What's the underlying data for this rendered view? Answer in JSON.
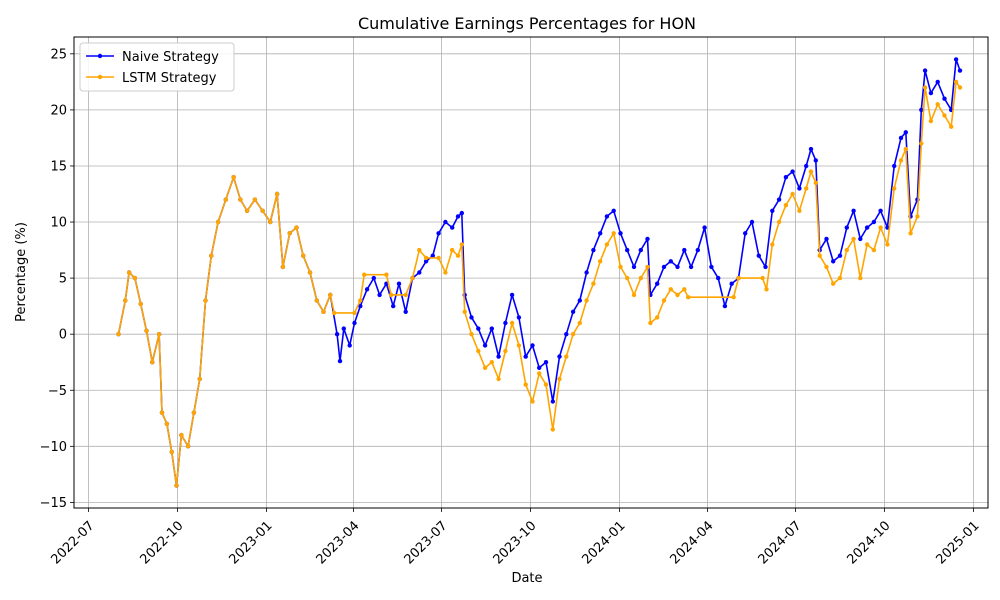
{
  "chart_data": {
    "type": "line",
    "title": "Cumulative Earnings Percentages for HON",
    "xlabel": "Date",
    "ylabel": "Percentage (%)",
    "grid": true,
    "legend_position": "top-left",
    "xlim": [
      "2022-06-16",
      "2025-01-16"
    ],
    "ylim": [
      -15.5,
      26.5
    ],
    "x_ticks": [
      {
        "date": "2022-07-01",
        "label": "2022-07"
      },
      {
        "date": "2022-10-01",
        "label": "2022-10"
      },
      {
        "date": "2023-01-01",
        "label": "2023-01"
      },
      {
        "date": "2023-04-01",
        "label": "2023-04"
      },
      {
        "date": "2023-07-01",
        "label": "2023-07"
      },
      {
        "date": "2023-10-01",
        "label": "2023-10"
      },
      {
        "date": "2024-01-01",
        "label": "2024-01"
      },
      {
        "date": "2024-04-01",
        "label": "2024-04"
      },
      {
        "date": "2024-07-01",
        "label": "2024-07"
      },
      {
        "date": "2024-10-01",
        "label": "2024-10"
      },
      {
        "date": "2025-01-01",
        "label": "2025-01"
      }
    ],
    "y_ticks": [
      {
        "value": -15,
        "label": "−15"
      },
      {
        "value": -10,
        "label": "−10"
      },
      {
        "value": -5,
        "label": "−5"
      },
      {
        "value": 0,
        "label": "0"
      },
      {
        "value": 5,
        "label": "5"
      },
      {
        "value": 10,
        "label": "10"
      },
      {
        "value": 15,
        "label": "15"
      },
      {
        "value": 20,
        "label": "20"
      },
      {
        "value": 25,
        "label": "25"
      }
    ],
    "series": [
      {
        "name": "Naive Strategy",
        "color": "#0000ff",
        "points": [
          [
            "2022-08-01",
            0.0
          ],
          [
            "2022-08-08",
            3.0
          ],
          [
            "2022-08-12",
            5.5
          ],
          [
            "2022-08-18",
            5.0
          ],
          [
            "2022-08-24",
            2.7
          ],
          [
            "2022-08-30",
            0.3
          ],
          [
            "2022-09-05",
            -2.5
          ],
          [
            "2022-09-12",
            0.0
          ],
          [
            "2022-09-15",
            -7.0
          ],
          [
            "2022-09-20",
            -8.0
          ],
          [
            "2022-09-25",
            -10.5
          ],
          [
            "2022-09-30",
            -13.5
          ],
          [
            "2022-10-05",
            -9.0
          ],
          [
            "2022-10-12",
            -10.0
          ],
          [
            "2022-10-18",
            -7.0
          ],
          [
            "2022-10-24",
            -4.0
          ],
          [
            "2022-10-30",
            3.0
          ],
          [
            "2022-11-05",
            7.0
          ],
          [
            "2022-11-12",
            10.0
          ],
          [
            "2022-11-20",
            12.0
          ],
          [
            "2022-11-28",
            14.0
          ],
          [
            "2022-12-05",
            12.0
          ],
          [
            "2022-12-12",
            11.0
          ],
          [
            "2022-12-20",
            12.0
          ],
          [
            "2022-12-28",
            11.0
          ],
          [
            "2023-01-05",
            10.0
          ],
          [
            "2023-01-12",
            12.5
          ],
          [
            "2023-01-18",
            6.0
          ],
          [
            "2023-01-25",
            9.0
          ],
          [
            "2023-02-01",
            9.5
          ],
          [
            "2023-02-08",
            7.0
          ],
          [
            "2023-02-15",
            5.5
          ],
          [
            "2023-02-22",
            3.0
          ],
          [
            "2023-03-01",
            2.0
          ],
          [
            "2023-03-08",
            3.5
          ],
          [
            "2023-03-15",
            0.0
          ],
          [
            "2023-03-18",
            -2.4
          ],
          [
            "2023-03-22",
            0.5
          ],
          [
            "2023-03-28",
            -1.0
          ],
          [
            "2023-04-02",
            1.0
          ],
          [
            "2023-04-08",
            2.5
          ],
          [
            "2023-04-15",
            4.0
          ],
          [
            "2023-04-22",
            5.0
          ],
          [
            "2023-04-28",
            3.5
          ],
          [
            "2023-05-05",
            4.5
          ],
          [
            "2023-05-12",
            2.5
          ],
          [
            "2023-05-18",
            4.5
          ],
          [
            "2023-05-25",
            2.0
          ],
          [
            "2023-06-01",
            5.0
          ],
          [
            "2023-06-08",
            5.5
          ],
          [
            "2023-06-15",
            6.5
          ],
          [
            "2023-06-22",
            7.0
          ],
          [
            "2023-06-28",
            9.0
          ],
          [
            "2023-07-05",
            10.0
          ],
          [
            "2023-07-12",
            9.5
          ],
          [
            "2023-07-18",
            10.5
          ],
          [
            "2023-07-22",
            10.8
          ],
          [
            "2023-07-25",
            3.5
          ],
          [
            "2023-08-01",
            1.5
          ],
          [
            "2023-08-08",
            0.5
          ],
          [
            "2023-08-15",
            -1.0
          ],
          [
            "2023-08-22",
            0.5
          ],
          [
            "2023-08-29",
            -2.0
          ],
          [
            "2023-09-05",
            1.0
          ],
          [
            "2023-09-12",
            3.5
          ],
          [
            "2023-09-19",
            1.5
          ],
          [
            "2023-09-26",
            -2.0
          ],
          [
            "2023-10-03",
            -1.0
          ],
          [
            "2023-10-10",
            -3.0
          ],
          [
            "2023-10-17",
            -2.5
          ],
          [
            "2023-10-24",
            -6.0
          ],
          [
            "2023-10-31",
            -2.0
          ],
          [
            "2023-11-07",
            0.0
          ],
          [
            "2023-11-14",
            2.0
          ],
          [
            "2023-11-21",
            3.0
          ],
          [
            "2023-11-28",
            5.5
          ],
          [
            "2023-12-05",
            7.5
          ],
          [
            "2023-12-12",
            9.0
          ],
          [
            "2023-12-19",
            10.5
          ],
          [
            "2023-12-26",
            11.0
          ],
          [
            "2024-01-02",
            9.0
          ],
          [
            "2024-01-09",
            7.5
          ],
          [
            "2024-01-16",
            6.0
          ],
          [
            "2024-01-23",
            7.5
          ],
          [
            "2024-01-30",
            8.5
          ],
          [
            "2024-02-02",
            3.5
          ],
          [
            "2024-02-09",
            4.5
          ],
          [
            "2024-02-16",
            6.0
          ],
          [
            "2024-02-23",
            6.5
          ],
          [
            "2024-03-01",
            6.0
          ],
          [
            "2024-03-08",
            7.5
          ],
          [
            "2024-03-15",
            6.0
          ],
          [
            "2024-03-22",
            7.5
          ],
          [
            "2024-03-29",
            9.5
          ],
          [
            "2024-04-05",
            6.0
          ],
          [
            "2024-04-12",
            5.0
          ],
          [
            "2024-04-19",
            2.5
          ],
          [
            "2024-04-26",
            4.5
          ],
          [
            "2024-05-03",
            5.0
          ],
          [
            "2024-05-10",
            9.0
          ],
          [
            "2024-05-17",
            10.0
          ],
          [
            "2024-05-24",
            7.0
          ],
          [
            "2024-05-31",
            6.0
          ],
          [
            "2024-06-07",
            11.0
          ],
          [
            "2024-06-14",
            12.0
          ],
          [
            "2024-06-21",
            14.0
          ],
          [
            "2024-06-28",
            14.5
          ],
          [
            "2024-07-05",
            13.0
          ],
          [
            "2024-07-12",
            15.0
          ],
          [
            "2024-07-17",
            16.5
          ],
          [
            "2024-07-22",
            15.5
          ],
          [
            "2024-07-26",
            7.5
          ],
          [
            "2024-08-02",
            8.5
          ],
          [
            "2024-08-09",
            6.5
          ],
          [
            "2024-08-16",
            7.0
          ],
          [
            "2024-08-23",
            9.5
          ],
          [
            "2024-08-30",
            11.0
          ],
          [
            "2024-09-06",
            8.5
          ],
          [
            "2024-09-13",
            9.5
          ],
          [
            "2024-09-20",
            10.0
          ],
          [
            "2024-09-27",
            11.0
          ],
          [
            "2024-10-04",
            9.5
          ],
          [
            "2024-10-11",
            15.0
          ],
          [
            "2024-10-18",
            17.5
          ],
          [
            "2024-10-23",
            18.0
          ],
          [
            "2024-10-28",
            10.5
          ],
          [
            "2024-11-04",
            12.0
          ],
          [
            "2024-11-08",
            20.0
          ],
          [
            "2024-11-12",
            23.5
          ],
          [
            "2024-11-18",
            21.5
          ],
          [
            "2024-11-25",
            22.5
          ],
          [
            "2024-12-02",
            21.0
          ],
          [
            "2024-12-09",
            20.0
          ],
          [
            "2024-12-14",
            24.5
          ],
          [
            "2024-12-18",
            23.5
          ]
        ]
      },
      {
        "name": "LSTM Strategy",
        "color": "#ffa500",
        "points": [
          [
            "2022-08-01",
            0.0
          ],
          [
            "2022-08-08",
            3.0
          ],
          [
            "2022-08-12",
            5.5
          ],
          [
            "2022-08-18",
            5.0
          ],
          [
            "2022-08-24",
            2.7
          ],
          [
            "2022-08-30",
            0.3
          ],
          [
            "2022-09-05",
            -2.5
          ],
          [
            "2022-09-12",
            0.0
          ],
          [
            "2022-09-15",
            -7.0
          ],
          [
            "2022-09-20",
            -8.0
          ],
          [
            "2022-09-25",
            -10.5
          ],
          [
            "2022-09-30",
            -13.5
          ],
          [
            "2022-10-05",
            -9.0
          ],
          [
            "2022-10-12",
            -10.0
          ],
          [
            "2022-10-18",
            -7.0
          ],
          [
            "2022-10-24",
            -4.0
          ],
          [
            "2022-10-30",
            3.0
          ],
          [
            "2022-11-05",
            7.0
          ],
          [
            "2022-11-12",
            10.0
          ],
          [
            "2022-11-20",
            12.0
          ],
          [
            "2022-11-28",
            14.0
          ],
          [
            "2022-12-05",
            12.0
          ],
          [
            "2022-12-12",
            11.0
          ],
          [
            "2022-12-20",
            12.0
          ],
          [
            "2022-12-28",
            11.0
          ],
          [
            "2023-01-05",
            10.0
          ],
          [
            "2023-01-12",
            12.5
          ],
          [
            "2023-01-18",
            6.0
          ],
          [
            "2023-01-25",
            9.0
          ],
          [
            "2023-02-01",
            9.5
          ],
          [
            "2023-02-08",
            7.0
          ],
          [
            "2023-02-15",
            5.5
          ],
          [
            "2023-02-22",
            3.0
          ],
          [
            "2023-03-01",
            2.0
          ],
          [
            "2023-03-08",
            3.5
          ],
          [
            "2023-03-12",
            1.9
          ],
          [
            "2023-04-02",
            1.9
          ],
          [
            "2023-04-08",
            3.0
          ],
          [
            "2023-04-12",
            5.3
          ],
          [
            "2023-05-05",
            5.3
          ],
          [
            "2023-05-10",
            3.5
          ],
          [
            "2023-05-25",
            3.5
          ],
          [
            "2023-06-01",
            5.0
          ],
          [
            "2023-06-08",
            7.5
          ],
          [
            "2023-06-15",
            6.8
          ],
          [
            "2023-06-28",
            6.8
          ],
          [
            "2023-07-05",
            5.5
          ],
          [
            "2023-07-12",
            7.5
          ],
          [
            "2023-07-18",
            7.0
          ],
          [
            "2023-07-22",
            8.0
          ],
          [
            "2023-07-25",
            2.0
          ],
          [
            "2023-08-01",
            0.0
          ],
          [
            "2023-08-08",
            -1.5
          ],
          [
            "2023-08-15",
            -3.0
          ],
          [
            "2023-08-22",
            -2.5
          ],
          [
            "2023-08-29",
            -4.0
          ],
          [
            "2023-09-05",
            -1.5
          ],
          [
            "2023-09-12",
            1.0
          ],
          [
            "2023-09-19",
            -1.0
          ],
          [
            "2023-09-26",
            -4.5
          ],
          [
            "2023-10-03",
            -6.0
          ],
          [
            "2023-10-10",
            -3.5
          ],
          [
            "2023-10-17",
            -4.5
          ],
          [
            "2023-10-24",
            -8.5
          ],
          [
            "2023-10-31",
            -4.0
          ],
          [
            "2023-11-07",
            -2.0
          ],
          [
            "2023-11-14",
            0.0
          ],
          [
            "2023-11-21",
            1.0
          ],
          [
            "2023-11-28",
            3.0
          ],
          [
            "2023-12-05",
            4.5
          ],
          [
            "2023-12-12",
            6.5
          ],
          [
            "2023-12-19",
            8.0
          ],
          [
            "2023-12-26",
            9.0
          ],
          [
            "2024-01-02",
            6.0
          ],
          [
            "2024-01-09",
            5.0
          ],
          [
            "2024-01-16",
            3.5
          ],
          [
            "2024-01-23",
            5.0
          ],
          [
            "2024-01-30",
            6.0
          ],
          [
            "2024-02-02",
            1.0
          ],
          [
            "2024-02-09",
            1.5
          ],
          [
            "2024-02-16",
            3.0
          ],
          [
            "2024-02-23",
            4.0
          ],
          [
            "2024-03-01",
            3.5
          ],
          [
            "2024-03-08",
            4.0
          ],
          [
            "2024-03-12",
            3.3
          ],
          [
            "2024-04-28",
            3.3
          ],
          [
            "2024-05-03",
            5.0
          ],
          [
            "2024-05-28",
            5.0
          ],
          [
            "2024-06-01",
            4.0
          ],
          [
            "2024-06-07",
            8.0
          ],
          [
            "2024-06-14",
            10.0
          ],
          [
            "2024-06-21",
            11.5
          ],
          [
            "2024-06-28",
            12.5
          ],
          [
            "2024-07-05",
            11.0
          ],
          [
            "2024-07-12",
            13.0
          ],
          [
            "2024-07-17",
            14.5
          ],
          [
            "2024-07-22",
            13.5
          ],
          [
            "2024-07-26",
            7.0
          ],
          [
            "2024-08-02",
            6.0
          ],
          [
            "2024-08-09",
            4.5
          ],
          [
            "2024-08-16",
            5.0
          ],
          [
            "2024-08-23",
            7.5
          ],
          [
            "2024-08-30",
            8.5
          ],
          [
            "2024-09-06",
            5.0
          ],
          [
            "2024-09-13",
            8.0
          ],
          [
            "2024-09-20",
            7.5
          ],
          [
            "2024-09-27",
            9.5
          ],
          [
            "2024-10-04",
            8.0
          ],
          [
            "2024-10-11",
            13.0
          ],
          [
            "2024-10-18",
            15.5
          ],
          [
            "2024-10-23",
            16.5
          ],
          [
            "2024-10-28",
            9.0
          ],
          [
            "2024-11-04",
            10.5
          ],
          [
            "2024-11-08",
            17.0
          ],
          [
            "2024-11-12",
            22.0
          ],
          [
            "2024-11-18",
            19.0
          ],
          [
            "2024-11-25",
            20.5
          ],
          [
            "2024-12-02",
            19.5
          ],
          [
            "2024-12-09",
            18.5
          ],
          [
            "2024-12-14",
            22.5
          ],
          [
            "2024-12-18",
            22.0
          ]
        ]
      }
    ]
  }
}
